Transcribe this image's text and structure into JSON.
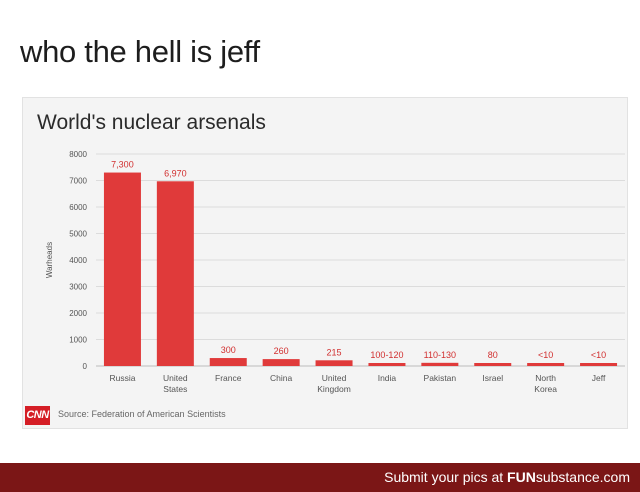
{
  "caption": "who the hell is jeff",
  "chart_data": {
    "type": "bar",
    "title": "World's nuclear arsenals",
    "ylabel": "Warheads",
    "xlabel": "",
    "ylim": [
      0,
      8000
    ],
    "yticks": [
      0,
      1000,
      2000,
      3000,
      4000,
      5000,
      6000,
      7000,
      8000
    ],
    "grid": true,
    "categories": [
      "Russia",
      "United States",
      "France",
      "China",
      "United Kingdom",
      "India",
      "Pakistan",
      "Israel",
      "North Korea",
      "Jeff"
    ],
    "category_lines": [
      [
        "Russia"
      ],
      [
        "United",
        "States"
      ],
      [
        "France"
      ],
      [
        "China"
      ],
      [
        "United",
        "Kingdom"
      ],
      [
        "India"
      ],
      [
        "Pakistan"
      ],
      [
        "Israel"
      ],
      [
        "North",
        "Korea"
      ],
      [
        "Jeff"
      ]
    ],
    "values": [
      7300,
      6970,
      300,
      260,
      215,
      110,
      120,
      80,
      10,
      10
    ],
    "data_labels": [
      "7,300",
      "6,970",
      "300",
      "260",
      "215",
      "100-120",
      "110-130",
      "80",
      "<10",
      "<10"
    ],
    "bar_color": "#e03a3a",
    "label_color": "#d12f2f"
  },
  "source": {
    "logo": "CNN",
    "text": "Source: Federation of American Scientists"
  },
  "footer": {
    "text_prefix": "Submit your pics at ",
    "brand_bold": "FUN",
    "brand_rest": "substance.com"
  }
}
